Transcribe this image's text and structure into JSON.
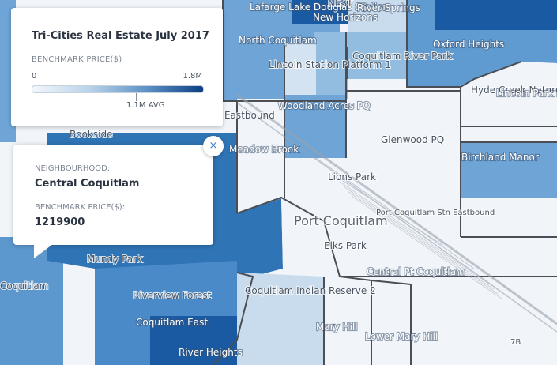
{
  "legend": {
    "title": "Tri-Cities Real Estate July 2017",
    "caption": "BENCHMARK PRICE($)",
    "min_label": "0",
    "max_label": "1.8M",
    "avg_label": "1.1M AVG",
    "min_value": 0,
    "max_value": 1800000,
    "avg_value": 1100000,
    "gradient_colors": [
      "#f3f7fb",
      "#b9d3ea",
      "#5d93c6",
      "#0c3f85"
    ]
  },
  "popup": {
    "neighbourhood_label": "NEIGHBOURHOOD:",
    "neighbourhood_value": "Central Coquitlam",
    "price_label": "BENCHMARK PRICE($):",
    "price_value": "1219900",
    "close_glyph": "×"
  },
  "map_labels": [
    "Lafarge Lake Douglas Station",
    "NEST",
    "New Horizons",
    "River Springs",
    "North Coquitlam",
    "Coquitlam River Park",
    "Oxford Heights",
    "Lincoln Station Platform 1",
    "Woodland Acres PQ",
    "Hyde Creek Nature Park",
    "Lincoln Park PQ",
    "Eastbound",
    "Meadow Brook",
    "Glenwood PQ",
    "Birchland Manor",
    "Bookside",
    "Lions Park",
    "Port Coquitlam",
    "Port Coquitlam Stn Eastbound",
    "Elks Park",
    "Mundy Park",
    "Central Pt Coquitlam",
    "Coquitlam Indian Reserve 2",
    "Riverview Forest",
    "Coquitlam East",
    "Mary Hill",
    "Lower Mary Hill",
    "River Heights",
    "Coquitlam",
    "7B"
  ],
  "colors": {
    "lightest": "#f1f5fa",
    "light": "#c9dcee",
    "medium": "#93bde0",
    "mediumdark": "#5f9bd0",
    "dark": "#2f74b5",
    "darkest": "#1a5aa3",
    "border": "#4b4f55"
  }
}
